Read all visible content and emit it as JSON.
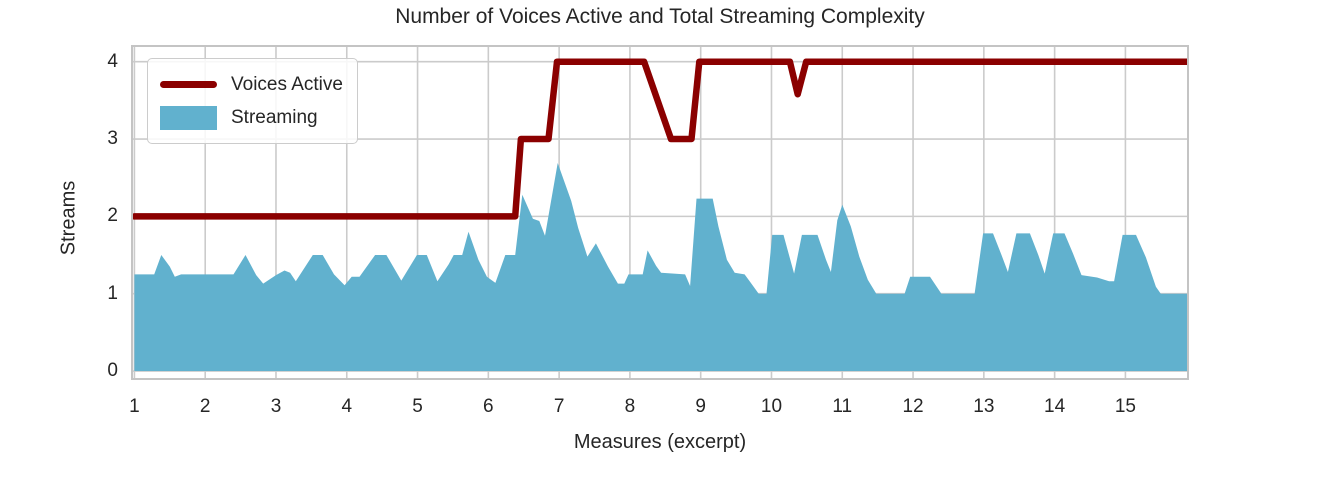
{
  "chart_data": {
    "type": "area+line",
    "title": "Number of Voices Active and Total Streaming Complexity",
    "xlabel": "Measures (excerpt)",
    "ylabel": "Streams",
    "xlim": [
      0.98,
      15.87
    ],
    "ylim": [
      -0.09,
      4.19
    ],
    "x_ticks": [
      1,
      2,
      3,
      4,
      5,
      6,
      7,
      8,
      9,
      10,
      11,
      12,
      13,
      14,
      15
    ],
    "y_ticks": [
      0,
      1,
      2,
      3,
      4
    ],
    "grid": true,
    "legend_position": "upper left",
    "colors": {
      "voices_line": "#8B0000",
      "streaming_fill": "#61B1CE",
      "gridline": "#cbcbcb",
      "border": "#c4c4c4",
      "text": "#262626"
    },
    "series": [
      {
        "name": "Voices Active",
        "type": "line",
        "color": "#8B0000",
        "points": [
          [
            1.0,
            2
          ],
          [
            6.38,
            2
          ],
          [
            6.46,
            3
          ],
          [
            6.85,
            3
          ],
          [
            6.97,
            4
          ],
          [
            8.2,
            4
          ],
          [
            8.58,
            3
          ],
          [
            8.87,
            3
          ],
          [
            8.98,
            4
          ],
          [
            10.26,
            4
          ],
          [
            10.37,
            3.58
          ],
          [
            10.49,
            4
          ],
          [
            15.87,
            4
          ]
        ]
      },
      {
        "name": "Streaming",
        "type": "area",
        "color": "#61B1CE",
        "baseline": 0,
        "points": [
          [
            1.0,
            1.25
          ],
          [
            1.28,
            1.25
          ],
          [
            1.38,
            1.5
          ],
          [
            1.5,
            1.35
          ],
          [
            1.57,
            1.22
          ],
          [
            1.66,
            1.25
          ],
          [
            2.4,
            1.25
          ],
          [
            2.57,
            1.5
          ],
          [
            2.72,
            1.24
          ],
          [
            2.82,
            1.13
          ],
          [
            3.0,
            1.24
          ],
          [
            3.12,
            1.3
          ],
          [
            3.2,
            1.27
          ],
          [
            3.28,
            1.16
          ],
          [
            3.52,
            1.5
          ],
          [
            3.66,
            1.5
          ],
          [
            3.82,
            1.25
          ],
          [
            3.97,
            1.11
          ],
          [
            4.07,
            1.22
          ],
          [
            4.18,
            1.22
          ],
          [
            4.4,
            1.5
          ],
          [
            4.56,
            1.5
          ],
          [
            4.77,
            1.17
          ],
          [
            4.99,
            1.5
          ],
          [
            5.13,
            1.5
          ],
          [
            5.28,
            1.16
          ],
          [
            5.44,
            1.38
          ],
          [
            5.51,
            1.5
          ],
          [
            5.63,
            1.5
          ],
          [
            5.72,
            1.8
          ],
          [
            5.86,
            1.44
          ],
          [
            5.98,
            1.22
          ],
          [
            6.1,
            1.14
          ],
          [
            6.24,
            1.5
          ],
          [
            6.38,
            1.5
          ],
          [
            6.48,
            2.28
          ],
          [
            6.63,
            1.97
          ],
          [
            6.72,
            1.94
          ],
          [
            6.8,
            1.75
          ],
          [
            6.98,
            2.69
          ],
          [
            7.17,
            2.2
          ],
          [
            7.27,
            1.85
          ],
          [
            7.4,
            1.48
          ],
          [
            7.52,
            1.65
          ],
          [
            7.69,
            1.35
          ],
          [
            7.83,
            1.13
          ],
          [
            7.92,
            1.13
          ],
          [
            7.98,
            1.25
          ],
          [
            8.18,
            1.25
          ],
          [
            8.25,
            1.56
          ],
          [
            8.37,
            1.36
          ],
          [
            8.44,
            1.27
          ],
          [
            8.78,
            1.25
          ],
          [
            8.85,
            1.1
          ],
          [
            8.94,
            2.23
          ],
          [
            9.17,
            2.23
          ],
          [
            9.25,
            1.87
          ],
          [
            9.37,
            1.44
          ],
          [
            9.48,
            1.27
          ],
          [
            9.62,
            1.25
          ],
          [
            9.7,
            1.15
          ],
          [
            9.82,
            1.0
          ],
          [
            9.93,
            1.0
          ],
          [
            10.01,
            1.76
          ],
          [
            10.17,
            1.76
          ],
          [
            10.32,
            1.26
          ],
          [
            10.43,
            1.76
          ],
          [
            10.65,
            1.76
          ],
          [
            10.77,
            1.44
          ],
          [
            10.84,
            1.28
          ],
          [
            10.93,
            1.95
          ],
          [
            11.0,
            2.15
          ],
          [
            11.12,
            1.87
          ],
          [
            11.24,
            1.48
          ],
          [
            11.36,
            1.18
          ],
          [
            11.48,
            1.0
          ],
          [
            11.88,
            1.0
          ],
          [
            11.96,
            1.22
          ],
          [
            12.24,
            1.22
          ],
          [
            12.4,
            1.0
          ],
          [
            12.87,
            1.0
          ],
          [
            12.99,
            1.78
          ],
          [
            13.13,
            1.78
          ],
          [
            13.25,
            1.5
          ],
          [
            13.34,
            1.28
          ],
          [
            13.46,
            1.78
          ],
          [
            13.65,
            1.78
          ],
          [
            13.77,
            1.5
          ],
          [
            13.86,
            1.26
          ],
          [
            13.98,
            1.78
          ],
          [
            14.14,
            1.78
          ],
          [
            14.26,
            1.52
          ],
          [
            14.38,
            1.24
          ],
          [
            14.6,
            1.21
          ],
          [
            14.77,
            1.16
          ],
          [
            14.84,
            1.16
          ],
          [
            14.96,
            1.76
          ],
          [
            15.15,
            1.76
          ],
          [
            15.29,
            1.47
          ],
          [
            15.43,
            1.09
          ],
          [
            15.5,
            1.0
          ],
          [
            15.87,
            1.0
          ]
        ]
      }
    ]
  }
}
